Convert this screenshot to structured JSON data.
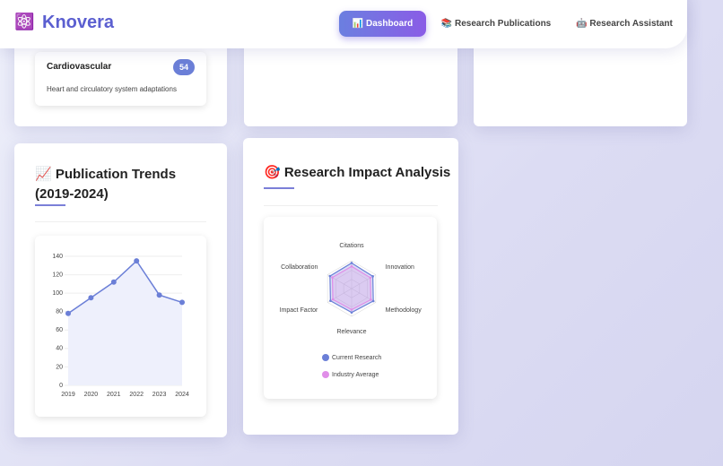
{
  "header": {
    "logo_icon": "⚛️",
    "brand": "Knovera",
    "nav": [
      "📊 Dashboard",
      "📚 Research Publications",
      "🤖 Research Assistant"
    ]
  },
  "category_card": {
    "title": "Cardiovascular",
    "count": 54,
    "description": "Heart and circulatory system adaptations"
  },
  "chart_data": [
    {
      "type": "line",
      "title": "📈 Publication Trends (2019-2024)",
      "categories": [
        "2019",
        "2020",
        "2021",
        "2022",
        "2023",
        "2024"
      ],
      "values": [
        78,
        95,
        112,
        135,
        98,
        90
      ],
      "color": "#6b7fd7",
      "ylim": [
        0,
        140
      ],
      "yticks": [
        0,
        20,
        40,
        60,
        80,
        100,
        120,
        140
      ],
      "grid": true
    },
    {
      "type": "radar",
      "title": "🎯 Research Impact Analysis",
      "categories": [
        "Citations",
        "Innovation",
        "Methodology",
        "Relevance",
        "Impact Factor",
        "Collaboration"
      ],
      "rlim": [
        0,
        100
      ],
      "series": [
        {
          "name": "Current Research",
          "color": "#6b7fd7",
          "values": [
            92,
            88,
            90,
            86,
            88,
            90
          ]
        },
        {
          "name": "Industry Average",
          "color": "#e08ee8",
          "values": [
            80,
            78,
            80,
            76,
            78,
            80
          ]
        }
      ]
    }
  ]
}
